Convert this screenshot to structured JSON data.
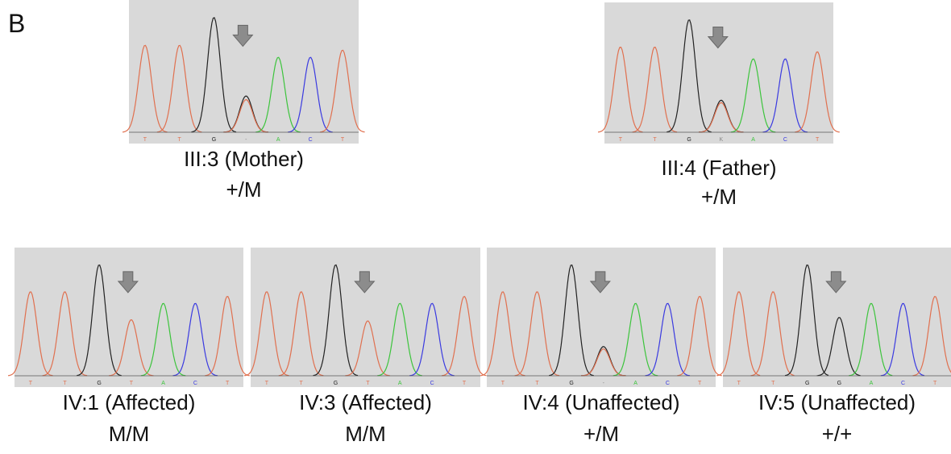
{
  "panel_label": "B",
  "panels": [
    {
      "label": "III:3 (Mother)",
      "genotype": "+/M",
      "bases": [
        "T",
        "T",
        "G",
        "-",
        "A",
        "C",
        "T"
      ]
    },
    {
      "label": "III:4 (Father)",
      "genotype": "+/M",
      "bases": [
        "T",
        "T",
        "G",
        "K",
        "A",
        "C",
        "T"
      ]
    },
    {
      "label": "IV:1 (Affected)",
      "genotype": "M/M",
      "bases": [
        "T",
        "T",
        "G",
        "T",
        "A",
        "C",
        "T"
      ]
    },
    {
      "label": "IV:3 (Affected)",
      "genotype": "M/M",
      "bases": [
        "T",
        "T",
        "G",
        "T",
        "A",
        "C",
        "T"
      ]
    },
    {
      "label": "IV:4 (Unaffected)",
      "genotype": "+/M",
      "bases": [
        "T",
        "T",
        "G",
        "-",
        "A",
        "C",
        "T"
      ]
    },
    {
      "label": "IV:5 (Unaffected)",
      "genotype": "+/+",
      "bases": [
        "T",
        "T",
        "G",
        "G",
        "A",
        "C",
        "T"
      ]
    }
  ]
}
